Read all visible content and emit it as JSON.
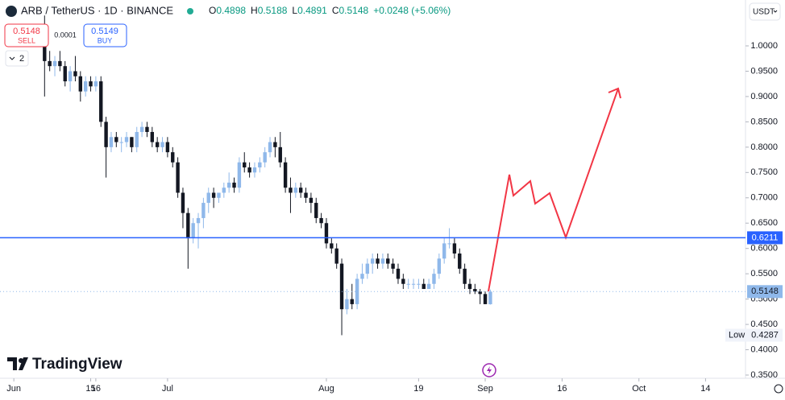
{
  "header": {
    "symbol": "ARB / TetherUS · 1D · BINANCE",
    "ohlc": [
      {
        "key": "O",
        "value": "0.4898"
      },
      {
        "key": "H",
        "value": "0.5188"
      },
      {
        "key": "L",
        "value": "0.4891"
      },
      {
        "key": "C",
        "value": "0.5148"
      }
    ],
    "change": "+0.0248 (+5.06%)",
    "sell_price": "0.5148",
    "sell_label": "SELL",
    "spread": "0.0001",
    "buy_price": "0.5149",
    "buy_label": "BUY",
    "indicators": "2",
    "currency": "USDT",
    "brand": "TradingView"
  },
  "chart_data": {
    "type": "candlestick",
    "x": [
      6,
      7,
      8,
      9,
      10,
      11,
      12,
      13,
      14,
      15,
      16,
      17,
      18,
      19,
      20,
      21,
      22,
      23,
      24,
      25,
      26,
      27,
      28,
      29,
      30,
      31,
      32,
      33,
      34,
      35,
      36,
      37,
      38,
      39,
      40,
      41,
      42,
      43,
      44,
      45,
      46,
      47,
      48,
      49,
      50,
      51,
      52,
      53,
      54,
      55,
      56,
      57,
      58,
      59,
      60,
      61,
      62,
      63,
      64,
      65,
      66,
      67,
      68,
      69,
      70,
      71,
      72,
      73,
      74,
      75,
      76,
      77,
      78,
      79,
      80,
      81,
      82,
      83,
      84,
      85,
      86,
      87,
      88,
      89,
      90,
      91,
      92,
      93
    ],
    "open": [
      1.0,
      0.97,
      0.96,
      0.97,
      0.96,
      0.93,
      0.95,
      0.94,
      0.91,
      0.93,
      0.92,
      0.93,
      0.85,
      0.8,
      0.82,
      0.81,
      0.81,
      0.82,
      0.8,
      0.83,
      0.84,
      0.83,
      0.81,
      0.8,
      0.81,
      0.79,
      0.77,
      0.71,
      0.67,
      0.62,
      0.65,
      0.66,
      0.69,
      0.71,
      0.7,
      0.71,
      0.72,
      0.73,
      0.72,
      0.77,
      0.76,
      0.75,
      0.76,
      0.77,
      0.79,
      0.81,
      0.8,
      0.77,
      0.72,
      0.71,
      0.72,
      0.71,
      0.7,
      0.69,
      0.66,
      0.65,
      0.61,
      0.6,
      0.57,
      0.48,
      0.5,
      0.49,
      0.54,
      0.55,
      0.57,
      0.58,
      0.57,
      0.58,
      0.57,
      0.56,
      0.54,
      0.53,
      0.53,
      0.53,
      0.53,
      0.52,
      0.53,
      0.55,
      0.58,
      0.61,
      0.61,
      0.59,
      0.56,
      0.53,
      0.52,
      0.515,
      0.51,
      0.4898
    ],
    "high": [
      1.06,
      0.99,
      0.98,
      0.99,
      0.97,
      0.96,
      0.98,
      0.95,
      0.94,
      0.94,
      0.94,
      0.94,
      0.86,
      0.83,
      0.83,
      0.82,
      0.83,
      0.82,
      0.84,
      0.85,
      0.85,
      0.84,
      0.82,
      0.82,
      0.82,
      0.8,
      0.78,
      0.72,
      0.68,
      0.66,
      0.67,
      0.7,
      0.72,
      0.72,
      0.71,
      0.73,
      0.75,
      0.74,
      0.78,
      0.79,
      0.77,
      0.77,
      0.78,
      0.8,
      0.82,
      0.82,
      0.83,
      0.78,
      0.74,
      0.73,
      0.73,
      0.72,
      0.71,
      0.7,
      0.67,
      0.66,
      0.62,
      0.61,
      0.58,
      0.52,
      0.53,
      0.55,
      0.57,
      0.58,
      0.59,
      0.59,
      0.59,
      0.59,
      0.58,
      0.57,
      0.55,
      0.54,
      0.54,
      0.54,
      0.54,
      0.54,
      0.56,
      0.59,
      0.62,
      0.64,
      0.62,
      0.6,
      0.57,
      0.54,
      0.53,
      0.52,
      0.515,
      0.5188
    ],
    "low": [
      0.9,
      0.95,
      0.94,
      0.95,
      0.92,
      0.91,
      0.93,
      0.89,
      0.9,
      0.91,
      0.91,
      0.84,
      0.74,
      0.79,
      0.8,
      0.79,
      0.8,
      0.79,
      0.79,
      0.82,
      0.82,
      0.8,
      0.79,
      0.79,
      0.78,
      0.76,
      0.7,
      0.64,
      0.56,
      0.61,
      0.6,
      0.64,
      0.67,
      0.68,
      0.69,
      0.7,
      0.71,
      0.71,
      0.71,
      0.75,
      0.74,
      0.74,
      0.75,
      0.76,
      0.78,
      0.78,
      0.76,
      0.71,
      0.67,
      0.7,
      0.7,
      0.69,
      0.67,
      0.65,
      0.64,
      0.6,
      0.59,
      0.56,
      0.4287,
      0.47,
      0.48,
      0.48,
      0.53,
      0.54,
      0.55,
      0.56,
      0.56,
      0.56,
      0.55,
      0.53,
      0.52,
      0.52,
      0.52,
      0.52,
      0.52,
      0.52,
      0.52,
      0.54,
      0.57,
      0.6,
      0.58,
      0.55,
      0.52,
      0.51,
      0.51,
      0.49,
      0.49,
      0.4891
    ],
    "close": [
      0.97,
      0.96,
      0.97,
      0.96,
      0.93,
      0.95,
      0.94,
      0.91,
      0.93,
      0.92,
      0.93,
      0.85,
      0.8,
      0.82,
      0.81,
      0.81,
      0.82,
      0.8,
      0.83,
      0.84,
      0.83,
      0.81,
      0.8,
      0.81,
      0.79,
      0.77,
      0.71,
      0.67,
      0.62,
      0.65,
      0.66,
      0.69,
      0.71,
      0.7,
      0.71,
      0.72,
      0.73,
      0.72,
      0.77,
      0.76,
      0.75,
      0.76,
      0.77,
      0.79,
      0.81,
      0.8,
      0.77,
      0.72,
      0.71,
      0.72,
      0.71,
      0.7,
      0.69,
      0.66,
      0.65,
      0.61,
      0.6,
      0.57,
      0.48,
      0.5,
      0.49,
      0.54,
      0.55,
      0.57,
      0.58,
      0.57,
      0.58,
      0.57,
      0.56,
      0.54,
      0.53,
      0.53,
      0.53,
      0.53,
      0.52,
      0.53,
      0.55,
      0.58,
      0.61,
      0.61,
      0.59,
      0.56,
      0.53,
      0.52,
      0.515,
      0.51,
      0.49,
      0.5148
    ],
    "up_color": "#8fb8ea",
    "down_color": "#131722",
    "xlim": [
      -2.7,
      142.8
    ],
    "xticks": [
      {
        "value": 0,
        "label": "Jun"
      },
      16,
      {
        "value": 30,
        "label": "Jul"
      },
      15,
      {
        "value": 61,
        "label": "Aug"
      },
      {
        "value": 79,
        "label": "19"
      },
      {
        "value": 92,
        "label": "Sep"
      },
      {
        "value": 107,
        "label": "16"
      },
      {
        "value": 122,
        "label": "Oct"
      },
      {
        "value": 135,
        "label": "14"
      }
    ],
    "ylim": [
      0.35,
      1.0906
    ],
    "yticks": [
      {
        "value": 0.35,
        "label": "0.3500"
      },
      {
        "value": 0.4,
        "label": "0.4000"
      },
      {
        "value": 0.45,
        "label": "0.4500"
      },
      {
        "value": 0.5,
        "label": "0.5000"
      },
      {
        "value": 0.55,
        "label": "0.5500"
      },
      {
        "value": 0.6,
        "label": "0.6000"
      },
      {
        "value": 0.65,
        "label": "0.6500"
      },
      {
        "value": 0.7,
        "label": "0.7000"
      },
      {
        "value": 0.75,
        "label": "0.7500"
      },
      {
        "value": 0.8,
        "label": "0.8000"
      },
      {
        "value": 0.85,
        "label": "0.8500"
      },
      {
        "value": 0.9,
        "label": "0.9000"
      },
      {
        "value": 0.95,
        "label": "0.9500"
      },
      {
        "value": 1,
        "label": "1.0000"
      }
    ],
    "hline": {
      "value": 0.6211,
      "color": "#2962ff"
    },
    "low_label": "Low"
  }
}
